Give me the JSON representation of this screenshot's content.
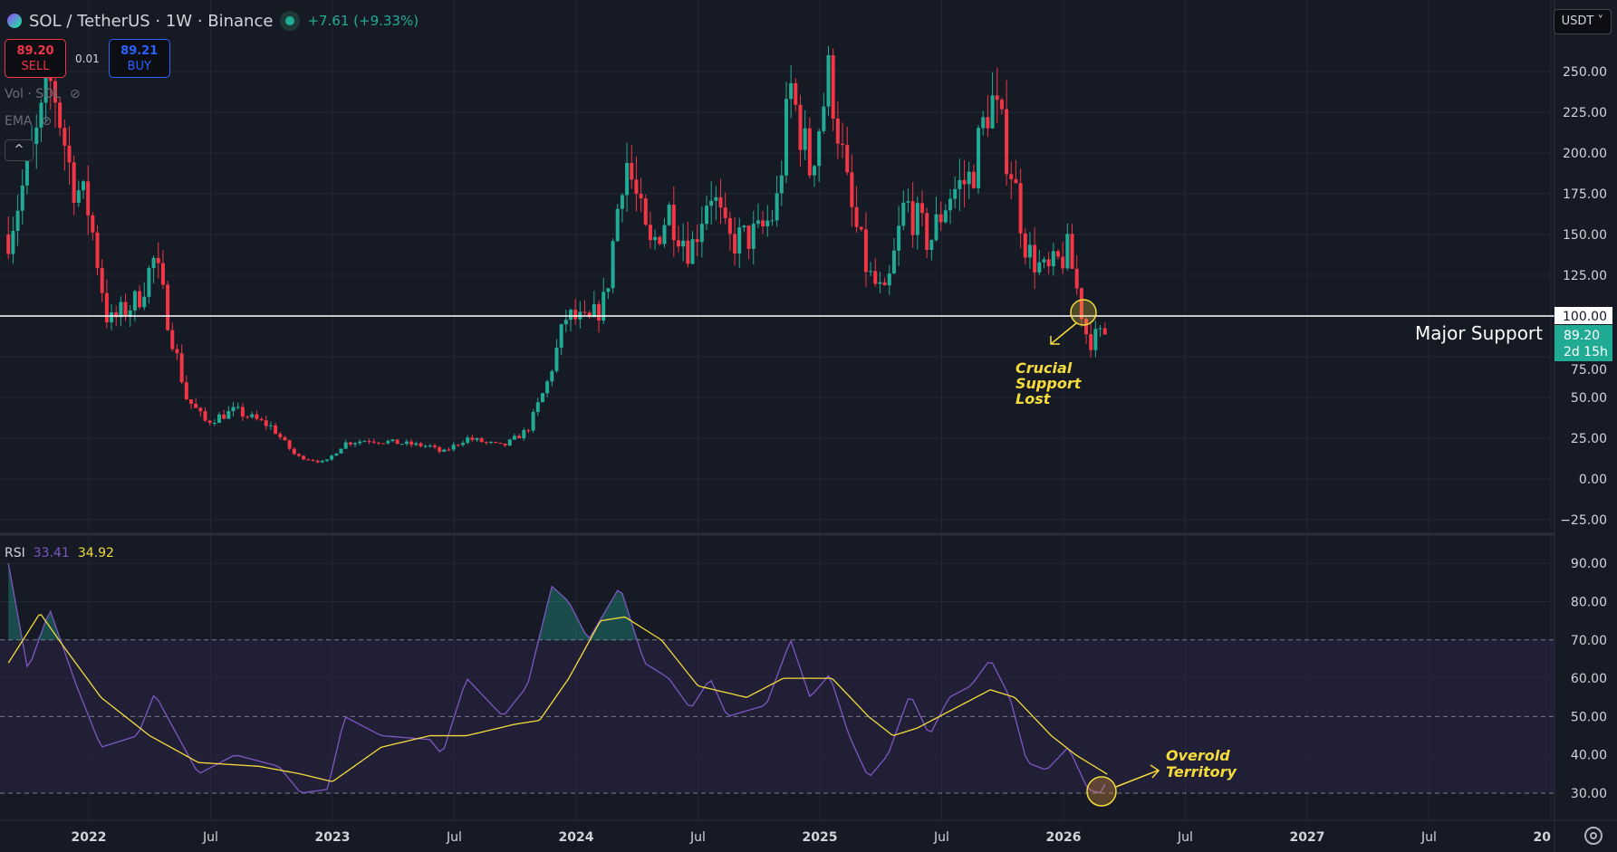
{
  "header": {
    "symbol": "SOL / TetherUS · 1W · Binance",
    "change": "+7.61 (+9.33%)",
    "currency": "USDT ˅"
  },
  "trade": {
    "sell_price": "89.20",
    "sell_label": "SELL",
    "spread": "0.01",
    "buy_price": "89.21",
    "buy_label": "BUY"
  },
  "indicators": {
    "vol": "Vol · SOL",
    "ema": "EMA",
    "collapse": "^"
  },
  "rsi": {
    "label": "RSI",
    "value": "33.41",
    "ma_value": "34.92"
  },
  "price_axis": {
    "ticks": [
      "250.00",
      "225.00",
      "200.00",
      "175.00",
      "150.00",
      "125.00",
      "100.00",
      "75.00",
      "50.00",
      "25.00",
      "0.00",
      "−25.00"
    ],
    "tick_values": [
      250,
      225,
      200,
      175,
      150,
      125,
      100,
      75,
      50,
      25,
      0,
      -25
    ],
    "support_label": "100.00",
    "last_price": "89.20",
    "countdown": "2d 15h"
  },
  "rsi_axis": {
    "ticks": [
      "90.00",
      "80.00",
      "70.00",
      "60.00",
      "50.00",
      "40.00",
      "30.00"
    ],
    "tick_values": [
      90,
      80,
      70,
      60,
      50,
      40,
      30
    ]
  },
  "time_axis": {
    "labels": [
      "2022",
      "Jul",
      "2023",
      "Jul",
      "2024",
      "Jul",
      "2025",
      "Jul",
      "2026",
      "Jul",
      "2027",
      "Jul",
      "20"
    ],
    "dates": [
      2022,
      2022.5,
      2023,
      2023.5,
      2024,
      2024.5,
      2025,
      2025.5,
      2026,
      2026.5,
      2027,
      2027.5,
      2028
    ]
  },
  "annotations": {
    "support_line": "Major Support",
    "support_level": 100,
    "crucial": [
      "Crucial",
      "Support",
      "Lost"
    ],
    "oversold": [
      "Overold",
      "Territory"
    ]
  },
  "colors": {
    "up": "#22ab94",
    "down": "#f23645",
    "rsi": "#7e57c2",
    "rsi_ma": "#f5dc3c",
    "annotation": "#f5dc3c",
    "background": "#161a25"
  },
  "price_path": [
    [
      2021.67,
      150
    ],
    [
      2021.75,
      190
    ],
    [
      2021.85,
      245
    ],
    [
      2021.93,
      185
    ],
    [
      2022.0,
      165
    ],
    [
      2022.08,
      95
    ],
    [
      2022.2,
      110
    ],
    [
      2022.27,
      135
    ],
    [
      2022.33,
      95
    ],
    [
      2022.4,
      50
    ],
    [
      2022.48,
      35
    ],
    [
      2022.6,
      42
    ],
    [
      2022.75,
      32
    ],
    [
      2022.85,
      14
    ],
    [
      2022.97,
      10
    ],
    [
      2023.05,
      22
    ],
    [
      2023.15,
      24
    ],
    [
      2023.4,
      20
    ],
    [
      2023.45,
      16
    ],
    [
      2023.55,
      25
    ],
    [
      2023.7,
      20
    ],
    [
      2023.8,
      30
    ],
    [
      2023.88,
      58
    ],
    [
      2023.96,
      100
    ],
    [
      2024.05,
      95
    ],
    [
      2024.12,
      110
    ],
    [
      2024.2,
      200
    ],
    [
      2024.3,
      140
    ],
    [
      2024.38,
      165
    ],
    [
      2024.47,
      140
    ],
    [
      2024.55,
      180
    ],
    [
      2024.62,
      145
    ],
    [
      2024.75,
      150
    ],
    [
      2024.82,
      165
    ],
    [
      2024.88,
      240
    ],
    [
      2024.96,
      190
    ],
    [
      2025.04,
      250
    ],
    [
      2025.12,
      170
    ],
    [
      2025.2,
      125
    ],
    [
      2025.27,
      110
    ],
    [
      2025.35,
      170
    ],
    [
      2025.45,
      145
    ],
    [
      2025.53,
      175
    ],
    [
      2025.62,
      185
    ],
    [
      2025.7,
      235
    ],
    [
      2025.78,
      195
    ],
    [
      2025.85,
      140
    ],
    [
      2025.93,
      125
    ],
    [
      2026.02,
      140
    ],
    [
      2026.1,
      85
    ],
    [
      2026.18,
      89.2
    ]
  ],
  "rsi_path": [
    [
      2021.67,
      90
    ],
    [
      2021.75,
      62
    ],
    [
      2021.84,
      78
    ],
    [
      2021.95,
      58
    ],
    [
      2022.05,
      42
    ],
    [
      2022.2,
      45
    ],
    [
      2022.27,
      56
    ],
    [
      2022.45,
      35
    ],
    [
      2022.6,
      40
    ],
    [
      2022.78,
      37
    ],
    [
      2022.87,
      30
    ],
    [
      2022.98,
      31
    ],
    [
      2023.05,
      50
    ],
    [
      2023.2,
      45
    ],
    [
      2023.4,
      44
    ],
    [
      2023.45,
      40
    ],
    [
      2023.55,
      60
    ],
    [
      2023.7,
      50
    ],
    [
      2023.8,
      58
    ],
    [
      2023.9,
      84
    ],
    [
      2023.97,
      80
    ],
    [
      2024.05,
      70
    ],
    [
      2024.18,
      84
    ],
    [
      2024.28,
      64
    ],
    [
      2024.38,
      60
    ],
    [
      2024.47,
      52
    ],
    [
      2024.55,
      60
    ],
    [
      2024.62,
      50
    ],
    [
      2024.78,
      53
    ],
    [
      2024.88,
      70
    ],
    [
      2024.96,
      55
    ],
    [
      2025.04,
      61
    ],
    [
      2025.12,
      45
    ],
    [
      2025.2,
      34
    ],
    [
      2025.28,
      40
    ],
    [
      2025.37,
      56
    ],
    [
      2025.45,
      45
    ],
    [
      2025.53,
      55
    ],
    [
      2025.62,
      58
    ],
    [
      2025.7,
      65
    ],
    [
      2025.78,
      55
    ],
    [
      2025.85,
      38
    ],
    [
      2025.93,
      36
    ],
    [
      2026.02,
      42
    ],
    [
      2026.1,
      31
    ],
    [
      2026.15,
      30
    ],
    [
      2026.18,
      33.41
    ]
  ],
  "rsi_ma_path": [
    [
      2021.67,
      64
    ],
    [
      2021.8,
      77
    ],
    [
      2021.9,
      68
    ],
    [
      2022.05,
      55
    ],
    [
      2022.25,
      45
    ],
    [
      2022.45,
      38
    ],
    [
      2022.7,
      37
    ],
    [
      2022.87,
      35
    ],
    [
      2023.0,
      33
    ],
    [
      2023.2,
      42
    ],
    [
      2023.4,
      45
    ],
    [
      2023.55,
      45
    ],
    [
      2023.75,
      48
    ],
    [
      2023.85,
      49
    ],
    [
      2023.97,
      60
    ],
    [
      2024.1,
      75
    ],
    [
      2024.2,
      76
    ],
    [
      2024.35,
      70
    ],
    [
      2024.5,
      58
    ],
    [
      2024.7,
      55
    ],
    [
      2024.85,
      60
    ],
    [
      2025.05,
      60
    ],
    [
      2025.2,
      50
    ],
    [
      2025.3,
      45
    ],
    [
      2025.4,
      47
    ],
    [
      2025.55,
      52
    ],
    [
      2025.7,
      57
    ],
    [
      2025.8,
      55
    ],
    [
      2025.95,
      45
    ],
    [
      2026.05,
      40
    ],
    [
      2026.18,
      34.92
    ]
  ]
}
